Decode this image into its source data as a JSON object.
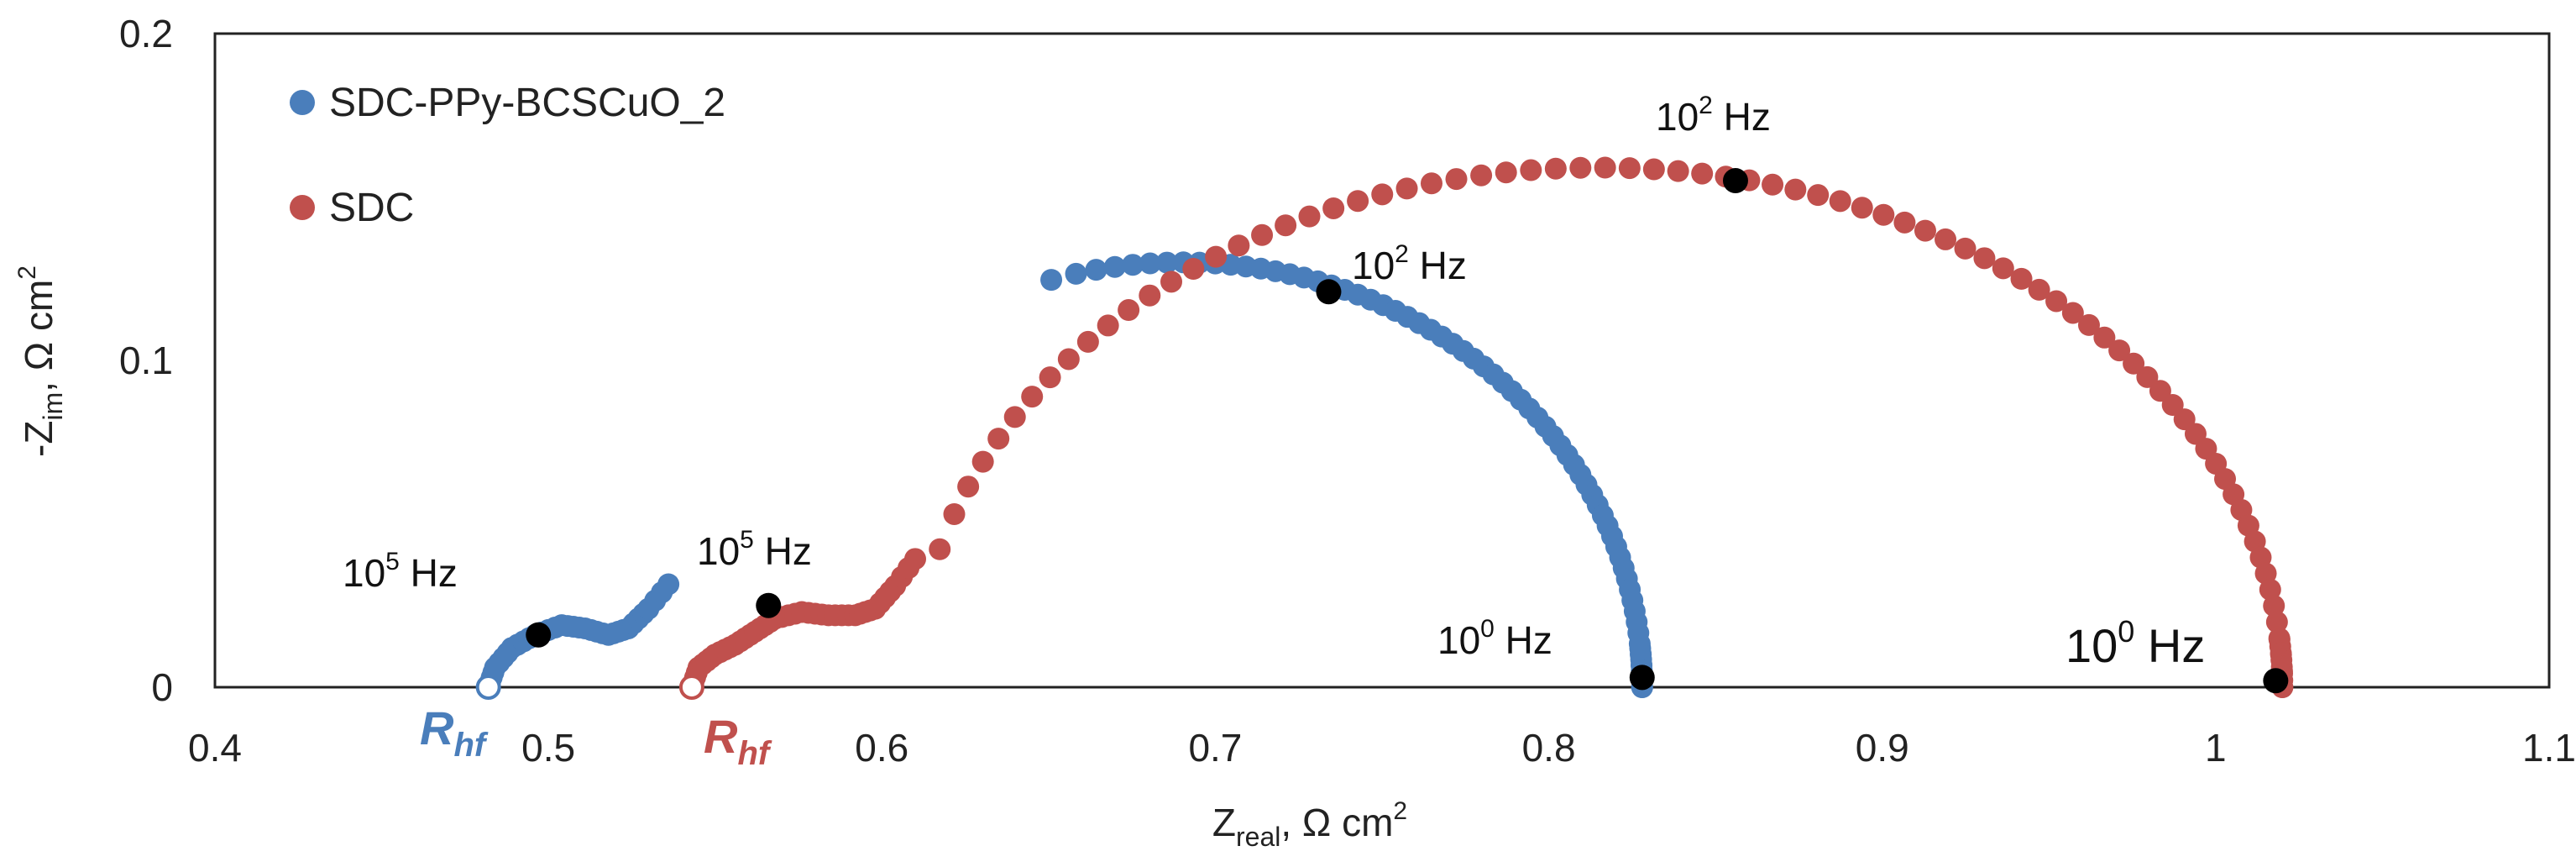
{
  "chart_data": {
    "type": "scatter",
    "title": "",
    "xlabel": {
      "main": "Z",
      "sub": "real",
      "rest": ", Ω cm",
      "sup": "2"
    },
    "ylabel": {
      "main": "-Z",
      "sub": "im",
      "rest": ", Ω cm",
      "sup": "2"
    },
    "xlim": [
      0.4,
      1.1
    ],
    "ylim": [
      0,
      0.2
    ],
    "x_ticks": [
      "0.4",
      "0.5",
      "0.6",
      "0.7",
      "0.8",
      "0.9",
      "1",
      "1.1"
    ],
    "y_ticks": [
      "0",
      "0.1",
      "0.2"
    ],
    "grid": false,
    "legend_position": "top-left",
    "series": [
      {
        "name": "SDC-PPy-BCSCuO_2",
        "color": "#4a7ebb",
        "curve": {
          "hf_knots": [
            [
              0.482,
              0.0
            ],
            [
              0.484,
              0.006
            ],
            [
              0.489,
              0.012
            ],
            [
              0.496,
              0.016
            ],
            [
              0.504,
              0.019
            ],
            [
              0.511,
              0.018
            ],
            [
              0.518,
              0.016
            ],
            [
              0.524,
              0.018
            ],
            [
              0.53,
              0.024
            ],
            [
              0.538,
              0.034
            ]
          ],
          "arc": {
            "center_x": 0.69,
            "center_y": 0.0,
            "radius_x": 0.138,
            "radius_y": 0.13,
            "start_deg": 106.5,
            "end_deg": 0
          }
        },
        "r_hf_x": 0.482
      },
      {
        "name": "SDC",
        "color": "#c0504d",
        "curve": {
          "hf_knots": [
            [
              0.543,
              0.0
            ],
            [
              0.545,
              0.006
            ],
            [
              0.55,
              0.01
            ],
            [
              0.556,
              0.013
            ],
            [
              0.562,
              0.017
            ],
            [
              0.568,
              0.021
            ],
            [
              0.576,
              0.023
            ],
            [
              0.584,
              0.022
            ],
            [
              0.592,
              0.022
            ],
            [
              0.598,
              0.024
            ],
            [
              0.604,
              0.031
            ],
            [
              0.612,
              0.042
            ]
          ],
          "arc": {
            "center_x": 0.815,
            "center_y": 0.0,
            "radius_x": 0.205,
            "radius_y": 0.159,
            "start_deg": 164.6,
            "end_deg": 0
          }
        },
        "r_hf_x": 0.543
      }
    ],
    "frequency_markers": [
      {
        "x": 0.497,
        "y": 0.016,
        "label_base": "10",
        "label_exp": "5",
        "label_unit": " Hz",
        "series": "SDC-PPy-BCSCuO_2"
      },
      {
        "x": 0.734,
        "y": 0.121,
        "label_base": "10",
        "label_exp": "2",
        "label_unit": " Hz",
        "series": "SDC-PPy-BCSCuO_2"
      },
      {
        "x": 0.828,
        "y": 0.003,
        "label_base": "10",
        "label_exp": "0",
        "label_unit": " Hz",
        "series": "SDC-PPy-BCSCuO_2"
      },
      {
        "x": 0.566,
        "y": 0.025,
        "label_base": "10",
        "label_exp": "5",
        "label_unit": " Hz",
        "series": "SDC"
      },
      {
        "x": 0.856,
        "y": 0.155,
        "label_base": "10",
        "label_exp": "2",
        "label_unit": " Hz",
        "series": "SDC"
      },
      {
        "x": 1.018,
        "y": 0.002,
        "label_base": "10",
        "label_exp": "0",
        "label_unit": " Hz",
        "series": "SDC"
      }
    ],
    "annotations": [
      {
        "text_main": "R",
        "text_sub": "hf",
        "series": "SDC-PPy-BCSCuO_2",
        "color": "#4a7ebb"
      },
      {
        "text_main": "R",
        "text_sub": "hf",
        "series": "SDC",
        "color": "#c0504d"
      }
    ]
  }
}
